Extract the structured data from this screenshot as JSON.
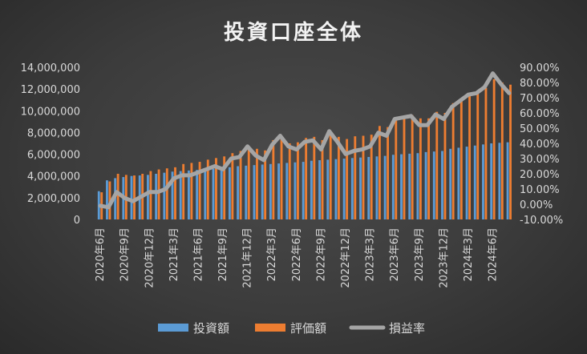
{
  "chart_data": {
    "type": "bar",
    "title": "投資口座全体",
    "colors": {
      "invest": "#5b9bd5",
      "eval": "#ed7d31",
      "rate": "#a5a5a5"
    },
    "left_axis": {
      "min": 0,
      "max": 14000000,
      "step": 2000000,
      "ticks": [
        "0",
        "2,000,000",
        "4,000,000",
        "6,000,000",
        "8,000,000",
        "10,000,000",
        "12,000,000",
        "14,000,000"
      ]
    },
    "right_axis": {
      "min": -0.1,
      "max": 0.9,
      "step": 0.1,
      "ticks": [
        "-10.00%",
        "0.00%",
        "10.00%",
        "20.00%",
        "30.00%",
        "40.00%",
        "50.00%",
        "60.00%",
        "70.00%",
        "80.00%",
        "90.00%"
      ]
    },
    "x_tick_labels": [
      {
        "index": 0,
        "label": "2020年6月"
      },
      {
        "index": 3,
        "label": "2020年9月"
      },
      {
        "index": 6,
        "label": "2020年12月"
      },
      {
        "index": 9,
        "label": "2021年3月"
      },
      {
        "index": 12,
        "label": "2021年6月"
      },
      {
        "index": 15,
        "label": "2021年9月"
      },
      {
        "index": 18,
        "label": "2021年12月"
      },
      {
        "index": 21,
        "label": "2022年3月"
      },
      {
        "index": 24,
        "label": "2022年6月"
      },
      {
        "index": 27,
        "label": "2022年9月"
      },
      {
        "index": 30,
        "label": "2022年12月"
      },
      {
        "index": 33,
        "label": "2023年3月"
      },
      {
        "index": 36,
        "label": "2023年6月"
      },
      {
        "index": 39,
        "label": "2023年9月"
      },
      {
        "index": 42,
        "label": "2023年12月"
      },
      {
        "index": 45,
        "label": "2024年3月"
      },
      {
        "index": 48,
        "label": "2024年6月"
      }
    ],
    "series": [
      {
        "name": "投資額",
        "kind": "bar",
        "axis": "left",
        "values": [
          2600000,
          3600000,
          3800000,
          3900000,
          4000000,
          4050000,
          4100000,
          4200000,
          4300000,
          4400000,
          4450000,
          4500000,
          4550000,
          4600000,
          4650000,
          4700000,
          4800000,
          4900000,
          4950000,
          5000000,
          5050000,
          5100000,
          5150000,
          5200000,
          5250000,
          5300000,
          5400000,
          5450000,
          5500000,
          5550000,
          5600000,
          5650000,
          5700000,
          5750000,
          5800000,
          5850000,
          5950000,
          6000000,
          6050000,
          6100000,
          6200000,
          6250000,
          6300000,
          6500000,
          6600000,
          6700000,
          6800000,
          6900000,
          7000000,
          7050000,
          7100000
        ]
      },
      {
        "name": "評価額",
        "kind": "bar",
        "axis": "left",
        "values": [
          2500000,
          3500000,
          4200000,
          4100000,
          4050000,
          4200000,
          4450000,
          4600000,
          4700000,
          4800000,
          5100000,
          5200000,
          5300000,
          5500000,
          5650000,
          5800000,
          6100000,
          6300000,
          6700000,
          6500000,
          6350000,
          7300000,
          7600000,
          7000000,
          7100000,
          7500000,
          7600000,
          7300000,
          8100000,
          7600000,
          7400000,
          7650000,
          7700000,
          7800000,
          8600000,
          8500000,
          9400000,
          9500000,
          9600000,
          9300000,
          9300000,
          9900000,
          9800000,
          10700000,
          11100000,
          11600000,
          11800000,
          12100000,
          12900000,
          12600000,
          12400000
        ]
      },
      {
        "name": "損益率",
        "kind": "line",
        "axis": "right",
        "values": [
          -0.01,
          -0.02,
          0.08,
          0.04,
          0.02,
          0.05,
          0.08,
          0.08,
          0.1,
          0.17,
          0.19,
          0.19,
          0.21,
          0.23,
          0.25,
          0.23,
          0.3,
          0.31,
          0.38,
          0.32,
          0.29,
          0.39,
          0.45,
          0.38,
          0.36,
          0.41,
          0.42,
          0.36,
          0.48,
          0.41,
          0.33,
          0.35,
          0.36,
          0.38,
          0.47,
          0.45,
          0.56,
          0.57,
          0.58,
          0.52,
          0.52,
          0.59,
          0.56,
          0.64,
          0.68,
          0.72,
          0.73,
          0.77,
          0.86,
          0.79,
          0.73
        ]
      }
    ]
  }
}
